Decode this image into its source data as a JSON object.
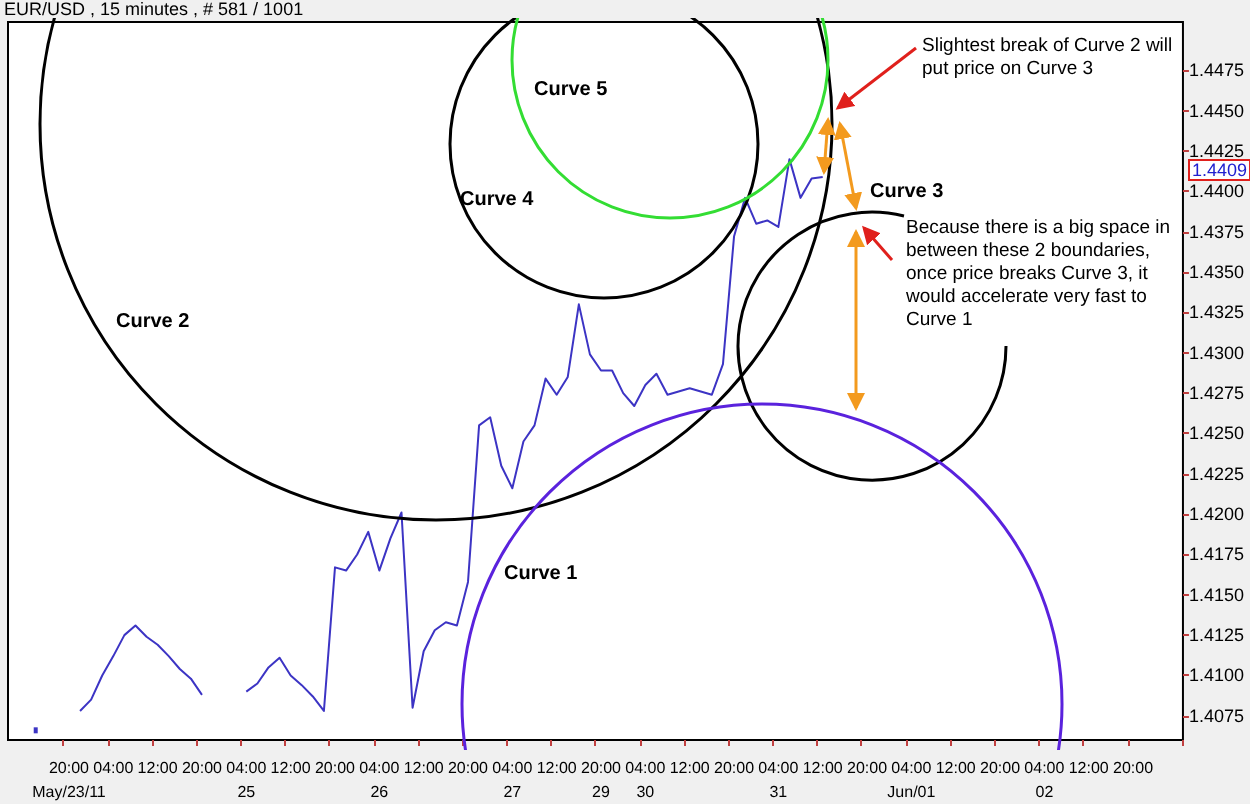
{
  "chart_data": {
    "type": "line",
    "title": "EUR/USD , 15 minutes , # 581 / 1001",
    "categories": [
      null,
      null,
      null,
      null,
      null,
      "20:00\nMay/23/11",
      null,
      null,
      null,
      "04:00",
      null,
      null,
      null,
      "12:00",
      null,
      null,
      null,
      "20:00",
      null,
      null,
      null,
      "04:00\n25",
      null,
      null,
      null,
      "12:00",
      null,
      null,
      null,
      "20:00",
      null,
      null,
      null,
      "04:00\n26",
      null,
      null,
      null,
      "12:00",
      null,
      null,
      null,
      "20:00",
      null,
      null,
      null,
      "04:00\n27",
      null,
      null,
      null,
      "12:00",
      null,
      null,
      null,
      "20:00\n29",
      null,
      null,
      null,
      "04:00\n30",
      null,
      null,
      null,
      "12:00",
      null,
      null,
      null,
      "20:00",
      null,
      null,
      null,
      "04:00\n31",
      null,
      null,
      null,
      "12:00",
      null,
      null,
      null,
      "20:00",
      null,
      null,
      null,
      "04:00\nJun/01",
      null,
      null,
      null,
      "12:00",
      null,
      null,
      null,
      "20:00",
      null,
      null,
      null,
      "04:00\n02",
      null,
      null,
      null,
      "12:00",
      null,
      null,
      null,
      "20:00",
      null,
      null,
      null,
      null
    ],
    "series": [
      {
        "color": "#3c34c4",
        "values": [
          null,
          null,
          1.4066,
          null,
          null,
          null,
          1.4078,
          1.4085,
          1.41,
          1.4112,
          1.4125,
          1.4131,
          1.4124,
          1.4119,
          1.4112,
          1.4104,
          1.4098,
          1.4088,
          null,
          null,
          null,
          1.409,
          1.4095,
          1.4105,
          1.4111,
          1.41,
          1.4094,
          1.4087,
          1.4078,
          1.4167,
          1.4165,
          1.4175,
          1.4189,
          1.4165,
          1.4185,
          1.4201,
          1.408,
          1.4115,
          1.4128,
          1.4133,
          1.4131,
          1.4158,
          1.4255,
          1.426,
          1.423,
          1.4216,
          1.4245,
          1.4255,
          1.4284,
          1.4274,
          1.4285,
          1.433,
          1.4299,
          1.4289,
          1.4289,
          1.4275,
          1.4267,
          1.428,
          1.4287,
          1.4274,
          1.4276,
          1.4278,
          1.4276,
          1.4274,
          1.4293,
          1.4372,
          1.4396,
          1.438,
          1.4382,
          1.4378,
          1.442,
          1.4396,
          1.4408,
          1.4409,
          null,
          null,
          null,
          null,
          null,
          null,
          null,
          null,
          null,
          null,
          null,
          null,
          null,
          null,
          null,
          null,
          null,
          null,
          null,
          null,
          null,
          null,
          null,
          null,
          null,
          null,
          null,
          null,
          null,
          null,
          null,
          null
        ]
      }
    ],
    "ylim": [
      1.406,
      1.4505
    ],
    "yticks": [
      {
        "value": 1.4075,
        "label": "1.4075"
      },
      {
        "value": 1.41,
        "label": "1.4100"
      },
      {
        "value": 1.4125,
        "label": "1.4125"
      },
      {
        "value": 1.415,
        "label": "1.4150"
      },
      {
        "value": 1.4175,
        "label": "1.4175"
      },
      {
        "value": 1.42,
        "label": "1.4200"
      },
      {
        "value": 1.4225,
        "label": "1.4225"
      },
      {
        "value": 1.425,
        "label": "1.4250"
      },
      {
        "value": 1.4275,
        "label": "1.4275"
      },
      {
        "value": 1.43,
        "label": "1.4300"
      },
      {
        "value": 1.4325,
        "label": "1.4325"
      },
      {
        "value": 1.435,
        "label": "1.4350"
      },
      {
        "value": 1.4375,
        "label": "1.4375"
      },
      {
        "value": 1.44,
        "label": "1.4400"
      },
      {
        "value": 1.4425,
        "label": "1.4425"
      },
      {
        "value": 1.445,
        "label": "1.4450"
      },
      {
        "value": 1.4475,
        "label": "1.4475"
      }
    ],
    "annotations": [
      "Curve 5",
      "Curve 4",
      "Curve 2",
      "Curve 3",
      "Curve 1",
      "Slightest break of Curve 2 will put price on Curve 3",
      "Because there is a big space in between these 2 boundaries, once price breaks Curve 3, it would accelerate very fast to Curve 1",
      "1.4409"
    ],
    "grid": false,
    "marker": "none",
    "line_style": "solid"
  }
}
